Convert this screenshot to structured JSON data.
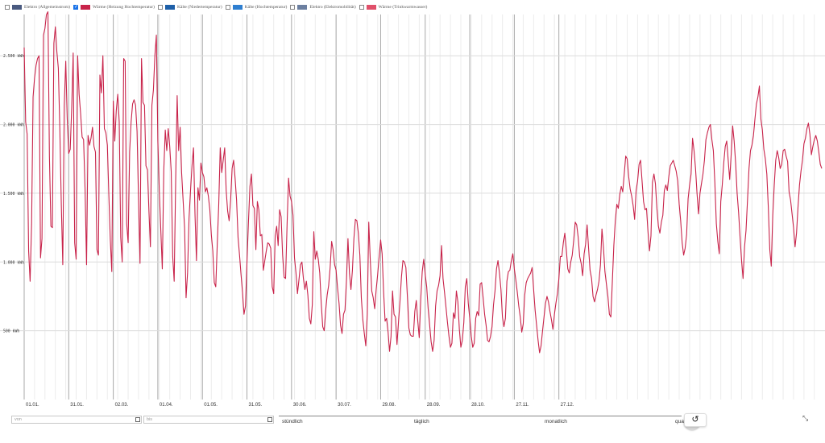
{
  "legend": [
    {
      "label": "Elektro (Allgemeinstrom)",
      "color": "#4a5a80",
      "checked": false
    },
    {
      "label": "Wärme (Heizung Hochtemperatur)",
      "color": "#c8234a",
      "checked": true
    },
    {
      "label": "Kälte (Niedertemperatur)",
      "color": "#1e5fa8",
      "checked": false
    },
    {
      "label": "Kälte (Hochtemperatur)",
      "color": "#2f7fd0",
      "checked": false
    },
    {
      "label": "Elektro (Elektromobilität)",
      "color": "#6c7fa0",
      "checked": false
    },
    {
      "label": "Wärme (Trinkwarmwasser)",
      "color": "#e0506a",
      "checked": false
    }
  ],
  "controls": {
    "from_placeholder": "von",
    "to_placeholder": "bis",
    "granularity": [
      "stündlich",
      "täglich",
      "monatlich",
      "quar"
    ],
    "selected": "täglich"
  },
  "chart_data": {
    "type": "line",
    "x_ticks": [
      "01.01.",
      "31.01.",
      "02.03.",
      "01.04.",
      "01.05.",
      "31.05.",
      "30.06.",
      "30.07.",
      "29.08.",
      "28.09.",
      "28.10.",
      "27.11.",
      "27.12."
    ],
    "y_ticks": [
      "500 kWh",
      "1.000 kWh",
      "1.500 kWh",
      "2.000 kWh",
      "2.500 kWh"
    ],
    "ylim": [
      0,
      2800
    ],
    "series": [
      {
        "name": "Wärme (Heizung Hochtemperatur)",
        "color": "#c8234a",
        "values": [
          2560,
          2020,
          1930,
          1080,
          860,
          1280,
          2200,
          2340,
          2430,
          2480,
          2500,
          1030,
          1170,
          2650,
          2700,
          2800,
          2820,
          1770,
          1260,
          1250,
          2590,
          2710,
          2530,
          2410,
          1970,
          1420,
          980,
          2140,
          2460,
          2040,
          1790,
          1820,
          2120,
          2520,
          1140,
          1020,
          2500,
          2220,
          2080,
          1910,
          1890,
          1530,
          980,
          1920,
          1850,
          1900,
          1980,
          1840,
          1800,
          1090,
          1050,
          2360,
          2230,
          2500,
          1970,
          1940,
          1850,
          1490,
          1160,
          930,
          2170,
          1880,
          2100,
          2220,
          2020,
          1180,
          1000,
          2480,
          2460,
          1280,
          1140,
          1800,
          2020,
          2150,
          2180,
          2140,
          1950,
          1450,
          990,
          2480,
          2160,
          2140,
          1700,
          1670,
          1370,
          1110,
          2140,
          2250,
          2500,
          2650,
          1880,
          1510,
          1230,
          950,
          1670,
          1960,
          1810,
          1970,
          1840,
          1660,
          1040,
          860,
          1590,
          2210,
          1810,
          1980,
          1650,
          1450,
          1250,
          740,
          920,
          1320,
          1520,
          1700,
          1830,
          1350,
          1010,
          1540,
          1450,
          1720,
          1650,
          1620,
          1510,
          1540,
          1480,
          1380,
          1200,
          1080,
          850,
          820,
          1130,
          1420,
          1830,
          1650,
          1740,
          1830,
          1520,
          1370,
          1300,
          1450,
          1680,
          1740,
          1610,
          1450,
          1180,
          1050,
          910,
          780,
          620,
          680,
          1000,
          1290,
          1550,
          1640,
          1410,
          1390,
          1090,
          1440,
          1380,
          1190,
          1200,
          940,
          1010,
          1080,
          1140,
          1130,
          1100,
          820,
          770,
          1190,
          1260,
          1120,
          1380,
          1330,
          1050,
          890,
          880,
          1270,
          1610,
          1480,
          1440,
          1340,
          1030,
          920,
          770,
          870,
          980,
          1000,
          880,
          800,
          860,
          760,
          590,
          550,
          690,
          1220,
          1020,
          1080,
          1020,
          920,
          700,
          530,
          500,
          650,
          760,
          830,
          960,
          1150,
          1090,
          980,
          940,
          810,
          700,
          540,
          480,
          620,
          650,
          870,
          1170,
          920,
          800,
          940,
          1170,
          1310,
          1300,
          1210,
          1050,
          740,
          580,
          480,
          390,
          620,
          1290,
          1020,
          790,
          740,
          660,
          800,
          910,
          1040,
          1160,
          1060,
          780,
          570,
          590,
          490,
          350,
          460,
          790,
          620,
          600,
          400,
          560,
          710,
          890,
          1010,
          1000,
          960,
          750,
          520,
          470,
          460,
          460,
          640,
          720,
          570,
          450,
          730,
          930,
          1020,
          910,
          820,
          660,
          540,
          420,
          350,
          430,
          680,
          790,
          830,
          900,
          1120,
          880,
          780,
          670,
          560,
          460,
          380,
          410,
          630,
          590,
          790,
          710,
          510,
          380,
          430,
          560,
          820,
          880,
          700,
          590,
          460,
          380,
          410,
          590,
          640,
          610,
          840,
          850,
          740,
          620,
          540,
          430,
          420,
          460,
          530,
          690,
          790,
          950,
          1010,
          920,
          800,
          600,
          530,
          590,
          860,
          930,
          940,
          1010,
          1060,
          950,
          870,
          780,
          680,
          600,
          490,
          550,
          760,
          850,
          880,
          900,
          920,
          960,
          800,
          650,
          540,
          430,
          340,
          390,
          500,
          600,
          700,
          750,
          710,
          640,
          580,
          510,
          620,
          700,
          770,
          880,
          1040,
          1040,
          1140,
          1210,
          1090,
          950,
          920,
          1000,
          1050,
          1160,
          1290,
          1270,
          1180,
          1040,
          990,
          900,
          1060,
          1130,
          1270,
          1100,
          940,
          880,
          750,
          710,
          760,
          800,
          860,
          980,
          1240,
          1110,
          930,
          840,
          750,
          620,
          600,
          860,
          1120,
          1300,
          1420,
          1390,
          1490,
          1550,
          1510,
          1640,
          1770,
          1750,
          1620,
          1530,
          1480,
          1410,
          1310,
          1520,
          1590,
          1710,
          1740,
          1590,
          1440,
          1380,
          1390,
          1220,
          1080,
          1190,
          1580,
          1640,
          1570,
          1390,
          1260,
          1210,
          1290,
          1340,
          1520,
          1560,
          1520,
          1620,
          1700,
          1720,
          1740,
          1700,
          1660,
          1590,
          1420,
          1300,
          1140,
          1050,
          1100,
          1200,
          1460,
          1560,
          1640,
          1900,
          1810,
          1680,
          1500,
          1350,
          1500,
          1570,
          1640,
          1740,
          1890,
          1940,
          1980,
          2000,
          1890,
          1810,
          1580,
          1280,
          1150,
          1060,
          1440,
          1560,
          1720,
          1840,
          1880,
          1740,
          1600,
          1780,
          1990,
          1880,
          1720,
          1500,
          1360,
          1180,
          1010,
          880,
          1110,
          1230,
          1450,
          1680,
          1810,
          1850,
          1920,
          2040,
          2150,
          2200,
          2280,
          2040,
          1960,
          1820,
          1750,
          1640,
          1400,
          1090,
          970,
          1340,
          1560,
          1740,
          1810,
          1760,
          1680,
          1710,
          1810,
          1820,
          1770,
          1730,
          1510,
          1450,
          1350,
          1250,
          1110,
          1210,
          1400,
          1560,
          1660,
          1740,
          1860,
          1900,
          1970,
          2010,
          1930,
          1780,
          1840,
          1890,
          1920,
          1880,
          1800,
          1710,
          1680
        ]
      }
    ]
  }
}
